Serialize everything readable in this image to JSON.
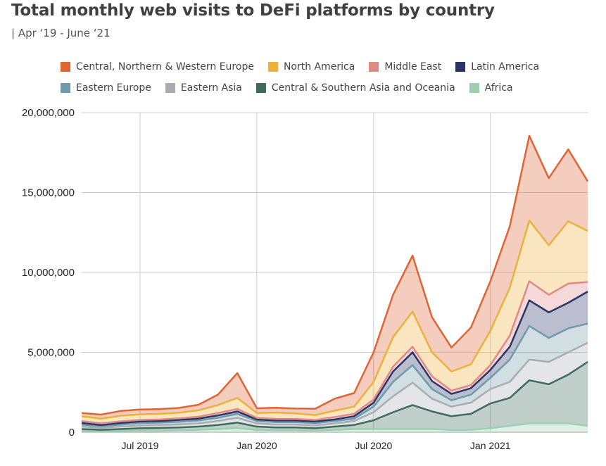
{
  "title": "Total monthly web visits to DeFi platforms by country",
  "subtitle": "| Apr ‘19 - June ‘21",
  "chart_data": {
    "type": "area",
    "stacked": true,
    "title": "Total monthly web visits to DeFi platforms by country",
    "subtitle": "| Apr ‘19 - June ‘21",
    "x": [
      "2019-04",
      "2019-05",
      "2019-06",
      "2019-07",
      "2019-08",
      "2019-09",
      "2019-10",
      "2019-11",
      "2019-12",
      "2020-01",
      "2020-02",
      "2020-03",
      "2020-04",
      "2020-05",
      "2020-06",
      "2020-07",
      "2020-08",
      "2020-09",
      "2020-10",
      "2020-11",
      "2020-12",
      "2021-01",
      "2021-02",
      "2021-03",
      "2021-04",
      "2021-05",
      "2021-06"
    ],
    "xtick_labels": [
      "Jul 2019",
      "Jan 2020",
      "Jul 2020",
      "Jan 2021"
    ],
    "xtick_positions": [
      "2019-07",
      "2020-01",
      "2020-07",
      "2021-01"
    ],
    "ylim": [
      0,
      20000000
    ],
    "yticks": [
      0,
      5000000,
      10000000,
      15000000,
      20000000
    ],
    "ytick_labels": [
      "0",
      "5,000,000",
      "10,000,000",
      "15,000,000",
      "20,000,000"
    ],
    "grid": true,
    "legend_position": "top",
    "series": [
      {
        "name": "Africa",
        "color": "#9ccfb0",
        "values": [
          80000,
          60000,
          80000,
          100000,
          100000,
          120000,
          150000,
          200000,
          250000,
          150000,
          120000,
          120000,
          100000,
          150000,
          200000,
          200000,
          200000,
          200000,
          200000,
          150000,
          150000,
          250000,
          400000,
          550000,
          550000,
          550000,
          400000
        ]
      },
      {
        "name": "Central & Southern Asia and Oceania",
        "color": "#3f6b5c",
        "values": [
          120000,
          90000,
          120000,
          150000,
          170000,
          180000,
          200000,
          250000,
          350000,
          200000,
          180000,
          180000,
          150000,
          200000,
          250000,
          550000,
          1050000,
          1500000,
          1100000,
          850000,
          1000000,
          1550000,
          1750000,
          2700000,
          2450000,
          3050000,
          4000000
        ]
      },
      {
        "name": "Eastern Asia",
        "color": "#a9adb3",
        "values": [
          150000,
          120000,
          150000,
          170000,
          180000,
          190000,
          200000,
          250000,
          300000,
          200000,
          180000,
          180000,
          170000,
          200000,
          250000,
          500000,
          1000000,
          1400000,
          800000,
          600000,
          700000,
          900000,
          1000000,
          1300000,
          1400000,
          1400000,
          1200000
        ]
      },
      {
        "name": "Eastern Europe",
        "color": "#6f9aa9",
        "values": [
          130000,
          100000,
          130000,
          150000,
          150000,
          160000,
          180000,
          200000,
          250000,
          150000,
          150000,
          150000,
          150000,
          150000,
          150000,
          350000,
          900000,
          1100000,
          600000,
          400000,
          500000,
          700000,
          1400000,
          2100000,
          1500000,
          1500000,
          1200000
        ]
      },
      {
        "name": "Latin America",
        "color": "#2b3467",
        "values": [
          100000,
          80000,
          100000,
          100000,
          100000,
          120000,
          120000,
          150000,
          150000,
          100000,
          100000,
          100000,
          100000,
          100000,
          150000,
          250000,
          650000,
          800000,
          500000,
          400000,
          400000,
          500000,
          800000,
          1600000,
          1600000,
          1600000,
          2000000
        ]
      },
      {
        "name": "Middle East",
        "color": "#df8a85",
        "values": [
          120000,
          100000,
          100000,
          100000,
          100000,
          100000,
          120000,
          150000,
          150000,
          100000,
          100000,
          100000,
          100000,
          150000,
          150000,
          200000,
          300000,
          350000,
          300000,
          200000,
          200000,
          300000,
          700000,
          1200000,
          1100000,
          1200000,
          600000
        ]
      },
      {
        "name": "North America",
        "color": "#ebb13d",
        "values": [
          300000,
          300000,
          350000,
          350000,
          350000,
          350000,
          400000,
          500000,
          700000,
          300000,
          400000,
          350000,
          300000,
          400000,
          450000,
          1100000,
          1850000,
          2200000,
          1500000,
          1200000,
          1300000,
          2150000,
          3000000,
          3800000,
          3100000,
          3900000,
          3200000
        ]
      },
      {
        "name": "Central, Northern & Western Europe",
        "color": "#e06535",
        "values": [
          200000,
          250000,
          300000,
          300000,
          300000,
          300000,
          350000,
          650000,
          1550000,
          300000,
          300000,
          300000,
          400000,
          750000,
          850000,
          1850000,
          2650000,
          3500000,
          2200000,
          1500000,
          2300000,
          3100000,
          3850000,
          5300000,
          4200000,
          4500000,
          3100000
        ]
      }
    ]
  },
  "legend": {
    "row1": [
      "Central, Northern & Western Europe",
      "North America",
      "Middle East",
      "Latin America"
    ],
    "row2": [
      "Eastern Europe",
      "Eastern Asia",
      "Central & Southern Asia and Oceania",
      "Africa"
    ]
  }
}
